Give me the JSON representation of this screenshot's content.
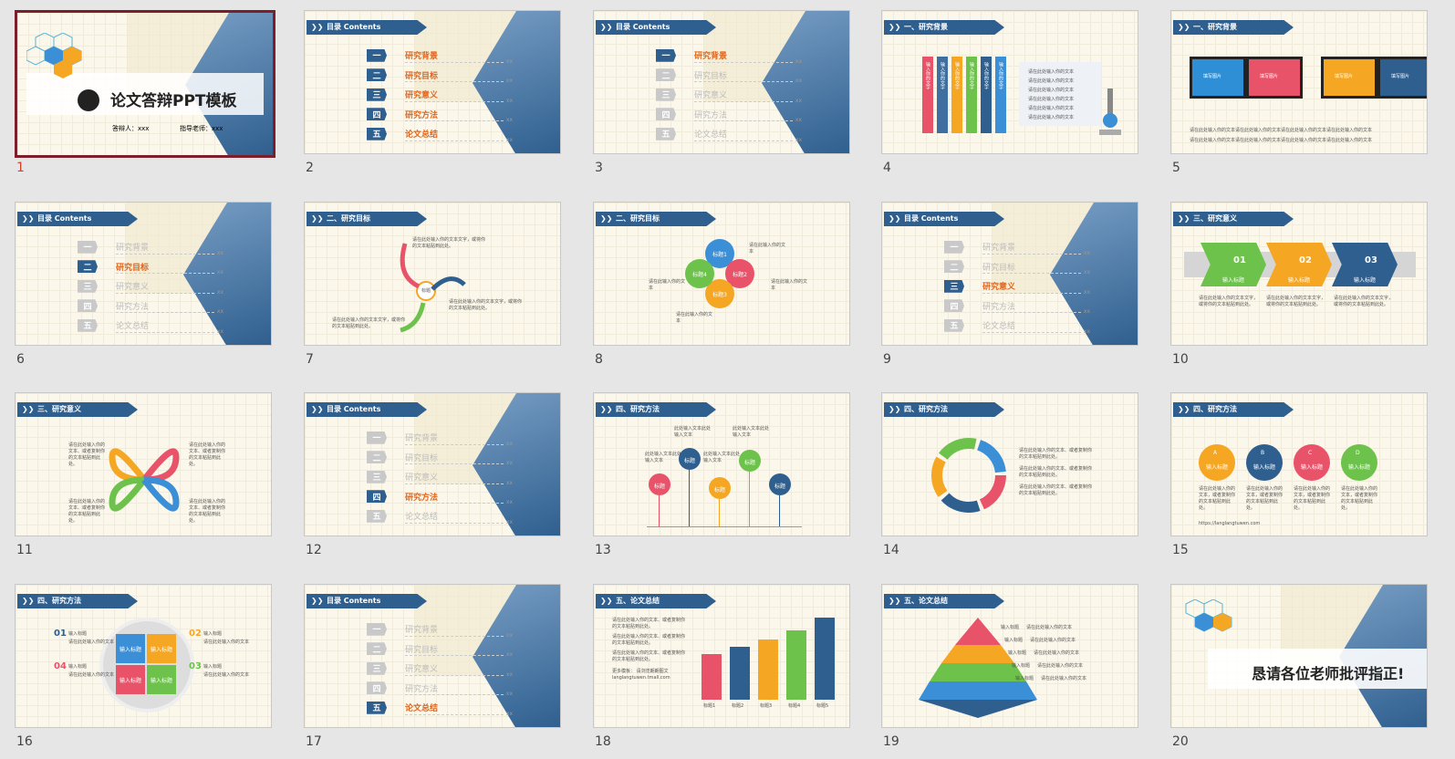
{
  "slides": [
    {
      "n": "1",
      "title": "论文答辩PPT模板",
      "presenter": "答辩人：xxx",
      "advisor": "指导老师：xxx"
    },
    {
      "n": "2",
      "header": "目录 Contents"
    },
    {
      "n": "3",
      "header": "目录 Contents"
    },
    {
      "n": "4",
      "header": "一、研究背景",
      "bars": [
        "输入你的文字",
        "输入你的文字",
        "输入你的文字",
        "输入你的文字",
        "输入你的文字",
        "输入你的文字"
      ],
      "lines": [
        "请在此处输入你的文本",
        "请在此处输入你的文本",
        "请在此处输入你的文本",
        "请在此处输入你的文本",
        "请在此处输入你的文本",
        "请在此处输入你的文本"
      ]
    },
    {
      "n": "5",
      "header": "一、研究背景",
      "screens": [
        "填写图片",
        "填写图片",
        "填写图片",
        "填写图片"
      ],
      "text1": "请在此处输入你的文本请在此处输入你的文本请在此处输入你的文本请在此处输入你的文本",
      "text2": "请在此处输入你的文本请在此处输入你的文本请在此处输入你的文本请在此处输入你的文本"
    },
    {
      "n": "6",
      "header": "目录 Contents"
    },
    {
      "n": "7",
      "header": "二、研究目标",
      "center": "标题",
      "t1": "请在此处输入你的文本文字，或将你的文本粘贴到此处。",
      "t2": "请在此处输入你的文本文字，或将你的文本粘贴到此处。",
      "t3": "请在此处输入你的文本文字，或将你的文本粘贴到此处。"
    },
    {
      "n": "8",
      "header": "二、研究目标",
      "petals": [
        "标题1",
        "标题2",
        "标题3",
        "标题4"
      ],
      "t1": "请在此输入你的文本",
      "t2": "请在此输入你的文本",
      "t3": "请在此输入你的文本",
      "t4": "请在此输入你的文本"
    },
    {
      "n": "9",
      "header": "目录 Contents"
    },
    {
      "n": "10",
      "header": "三、研究意义",
      "steps": [
        {
          "num": "01",
          "label": "输入标题"
        },
        {
          "num": "02",
          "label": "输入标题"
        },
        {
          "num": "03",
          "label": "输入标题"
        }
      ],
      "desc": "请在此处输入你的文本文字，或将你的文本粘贴到此处。"
    },
    {
      "n": "11",
      "header": "三、研究意义",
      "arrows": [
        "输入标题",
        "输入标题",
        "输入标题",
        "输入标题"
      ],
      "desc": "请在此处输入你的文本、或者复制你的文本粘贴到此处。"
    },
    {
      "n": "12",
      "header": "目录 Contents"
    },
    {
      "n": "13",
      "header": "四、研究方法",
      "pins": [
        "标题",
        "标题",
        "标题",
        "标题",
        "标题"
      ],
      "texts": [
        "此处输入文本此处输入文本",
        "此处输入文本此处输入文本",
        "此处输入文本此处输入文本",
        "此处输入文本此处输入文本"
      ]
    },
    {
      "n": "14",
      "header": "四、研究方法",
      "cycle": [
        "输入标题",
        "输入标题",
        "输入标题",
        "输入标题",
        "输入标题"
      ],
      "desc": "请在此处输入你的文本、或者复制你的文本粘贴到此处。"
    },
    {
      "n": "15",
      "header": "四、研究方法",
      "stickers": [
        {
          "letter": "A",
          "label": "输入标题"
        },
        {
          "letter": "B",
          "label": "输入标题"
        },
        {
          "letter": "C",
          "label": "输入标题"
        },
        {
          "letter": "D",
          "label": "输入标题"
        }
      ],
      "desc": "请在此处输入你的文本，或者复制你的文本粘贴到此处。",
      "url": "https://langlangtuwen.com"
    },
    {
      "n": "16",
      "header": "四、研究方法",
      "items": [
        {
          "num": "01",
          "label": "输入标题"
        },
        {
          "num": "02",
          "label": "输入标题"
        },
        {
          "num": "03",
          "label": "输入标题"
        },
        {
          "num": "04",
          "label": "输入标题"
        }
      ],
      "tiles": [
        "输入标题",
        "输入标题",
        "输入标题",
        "输入标题"
      ],
      "sub": "请在此处输入你的文本"
    },
    {
      "n": "17",
      "header": "目录 Contents"
    },
    {
      "n": "18",
      "header": "五、论文总结",
      "bars": [
        "标题1",
        "标题2",
        "标题3",
        "标题4",
        "标题5"
      ],
      "desc": "请在此处输入你的文本、或者复制你的文本粘贴到此处。",
      "more": "更多模板：  请浏览朗朗图文 langlangtuwen.tmall.com"
    },
    {
      "n": "19",
      "header": "五、论文总结",
      "levels": [
        "输入标题",
        "输入标题",
        "输入标题",
        "输入标题",
        "输入标题"
      ],
      "desc": "请在此处输入你的文本"
    },
    {
      "n": "20",
      "closing": "恳请各位老师批评指正!"
    }
  ],
  "toc": [
    "研究背景",
    "研究目标",
    "研究意义",
    "研究方法",
    "论文总结"
  ],
  "toc_nums": [
    "一",
    "二",
    "三",
    "四",
    "五"
  ],
  "toc_xx": "xx"
}
